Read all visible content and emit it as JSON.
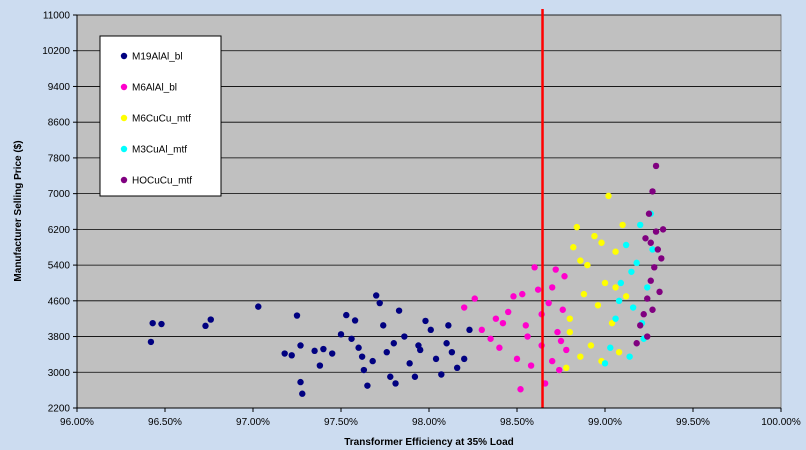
{
  "chart_data": {
    "type": "scatter",
    "title": "",
    "xlabel": "Transformer Efficiency at 35% Load",
    "ylabel": "Manufacturer Selling Price ($)",
    "x_format": "percent_2dp",
    "xlim": [
      0.96,
      1.0
    ],
    "ylim": [
      2200,
      11000
    ],
    "x_ticks": [
      0.96,
      0.965,
      0.97,
      0.975,
      0.98,
      0.985,
      0.99,
      0.995,
      1.0
    ],
    "x_tick_labels": [
      "96.00%",
      "96.50%",
      "97.00%",
      "97.50%",
      "98.00%",
      "98.50%",
      "99.00%",
      "99.50%",
      "100.00%"
    ],
    "y_ticks": [
      2200,
      3000,
      3800,
      4600,
      5400,
      6200,
      7000,
      7800,
      8600,
      9400,
      10200,
      11000
    ],
    "y_tick_labels": [
      "2200",
      "3000",
      "3800",
      "4600",
      "5400",
      "6200",
      "7000",
      "7800",
      "8600",
      "9400",
      "10200",
      "11000"
    ],
    "grid": "horizontal",
    "plot_background": "#c0c0c0",
    "legend_position": "top-left",
    "reference_line": {
      "x": 0.98645,
      "color": "#ff0000"
    },
    "series": [
      {
        "name": "M19AlAl_bl",
        "color": "#000080",
        "points": [
          [
            0.9643,
            4100
          ],
          [
            0.9642,
            3680
          ],
          [
            0.9648,
            4080
          ],
          [
            0.9673,
            4040
          ],
          [
            0.9676,
            4180
          ],
          [
            0.9703,
            4470
          ],
          [
            0.9725,
            4270
          ],
          [
            0.9718,
            3420
          ],
          [
            0.9722,
            3380
          ],
          [
            0.9727,
            2780
          ],
          [
            0.9728,
            2520
          ],
          [
            0.9735,
            3480
          ],
          [
            0.974,
            3520
          ],
          [
            0.9745,
            3420
          ],
          [
            0.975,
            3850
          ],
          [
            0.9753,
            4280
          ],
          [
            0.9758,
            4160
          ],
          [
            0.976,
            3550
          ],
          [
            0.9763,
            3050
          ],
          [
            0.9765,
            2700
          ],
          [
            0.9768,
            3250
          ],
          [
            0.977,
            4720
          ],
          [
            0.9772,
            4550
          ],
          [
            0.9774,
            4050
          ],
          [
            0.9776,
            3450
          ],
          [
            0.9778,
            2900
          ],
          [
            0.978,
            3650
          ],
          [
            0.9783,
            4380
          ],
          [
            0.9786,
            3800
          ],
          [
            0.9789,
            3200
          ],
          [
            0.9792,
            2900
          ],
          [
            0.9795,
            3500
          ],
          [
            0.9798,
            4150
          ],
          [
            0.9801,
            3950
          ],
          [
            0.9804,
            3300
          ],
          [
            0.9807,
            2950
          ],
          [
            0.981,
            3650
          ],
          [
            0.9813,
            3450
          ],
          [
            0.9816,
            3100
          ],
          [
            0.982,
            3300
          ],
          [
            0.9823,
            3950
          ],
          [
            0.9727,
            3600
          ],
          [
            0.9762,
            3350
          ],
          [
            0.9781,
            2750
          ],
          [
            0.9811,
            4050
          ],
          [
            0.9738,
            3150
          ],
          [
            0.9756,
            3750
          ],
          [
            0.9794,
            3600
          ]
        ]
      },
      {
        "name": "M6AlAl_bl",
        "color": "#ff00cc",
        "points": [
          [
            0.9826,
            4650
          ],
          [
            0.982,
            4450
          ],
          [
            0.983,
            3950
          ],
          [
            0.9835,
            3750
          ],
          [
            0.9838,
            4200
          ],
          [
            0.984,
            3550
          ],
          [
            0.9845,
            4350
          ],
          [
            0.9848,
            4700
          ],
          [
            0.985,
            3300
          ],
          [
            0.9852,
            2620
          ],
          [
            0.9855,
            4050
          ],
          [
            0.9858,
            3150
          ],
          [
            0.986,
            5350
          ],
          [
            0.9862,
            4850
          ],
          [
            0.9864,
            3600
          ],
          [
            0.9866,
            2750
          ],
          [
            0.9868,
            4550
          ],
          [
            0.987,
            4900
          ],
          [
            0.9872,
            5300
          ],
          [
            0.9873,
            3900
          ],
          [
            0.9874,
            3050
          ],
          [
            0.9876,
            4400
          ],
          [
            0.9877,
            5150
          ],
          [
            0.9878,
            3500
          ],
          [
            0.9842,
            4100
          ],
          [
            0.9856,
            3800
          ],
          [
            0.9864,
            4300
          ],
          [
            0.987,
            3250
          ],
          [
            0.9875,
            3700
          ],
          [
            0.9853,
            4750
          ]
        ]
      },
      {
        "name": "M6CuCu_mtf",
        "color": "#ffff00",
        "points": [
          [
            0.9878,
            3100
          ],
          [
            0.988,
            4200
          ],
          [
            0.9882,
            5800
          ],
          [
            0.9884,
            6250
          ],
          [
            0.9886,
            3350
          ],
          [
            0.9888,
            4750
          ],
          [
            0.989,
            5400
          ],
          [
            0.9892,
            3600
          ],
          [
            0.9894,
            6050
          ],
          [
            0.9896,
            4500
          ],
          [
            0.9898,
            3250
          ],
          [
            0.99,
            5000
          ],
          [
            0.9902,
            6950
          ],
          [
            0.9904,
            4100
          ],
          [
            0.9906,
            5700
          ],
          [
            0.9908,
            3450
          ],
          [
            0.991,
            6300
          ],
          [
            0.9912,
            4700
          ],
          [
            0.9886,
            5500
          ],
          [
            0.9898,
            5900
          ],
          [
            0.9906,
            4900
          ],
          [
            0.988,
            3900
          ]
        ]
      },
      {
        "name": "M3CuAl_mtf",
        "color": "#00ffff",
        "points": [
          [
            0.99,
            3200
          ],
          [
            0.9903,
            3550
          ],
          [
            0.9906,
            4200
          ],
          [
            0.9909,
            5000
          ],
          [
            0.9912,
            5850
          ],
          [
            0.9914,
            3350
          ],
          [
            0.9916,
            4450
          ],
          [
            0.9918,
            5450
          ],
          [
            0.992,
            6300
          ],
          [
            0.9922,
            3750
          ],
          [
            0.9924,
            4900
          ],
          [
            0.9926,
            6550
          ],
          [
            0.9915,
            5250
          ],
          [
            0.9908,
            4600
          ],
          [
            0.9921,
            4100
          ],
          [
            0.9927,
            5750
          ]
        ]
      },
      {
        "name": "HOCuCu_mtf",
        "color": "#800080",
        "points": [
          [
            0.9918,
            3650
          ],
          [
            0.992,
            4050
          ],
          [
            0.9922,
            4300
          ],
          [
            0.9924,
            4650
          ],
          [
            0.9926,
            5050
          ],
          [
            0.9928,
            5350
          ],
          [
            0.993,
            5750
          ],
          [
            0.9926,
            5900
          ],
          [
            0.9929,
            6150
          ],
          [
            0.9923,
            6000
          ],
          [
            0.9925,
            6550
          ],
          [
            0.9927,
            7050
          ],
          [
            0.9929,
            7620
          ],
          [
            0.9932,
            5550
          ],
          [
            0.9931,
            4800
          ],
          [
            0.9927,
            4400
          ],
          [
            0.9933,
            6200
          ],
          [
            0.9924,
            3800
          ]
        ]
      }
    ]
  }
}
